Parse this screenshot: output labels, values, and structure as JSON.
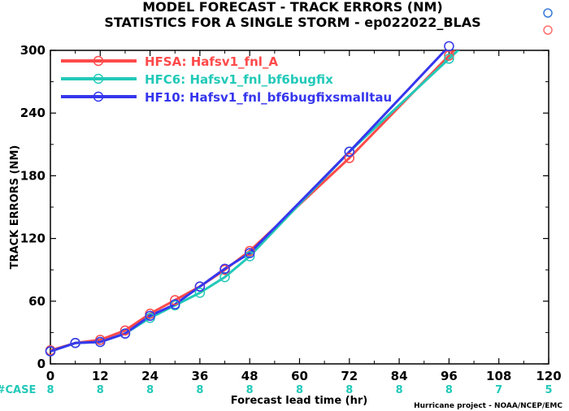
{
  "chart_data": {
    "type": "line",
    "title": "MODEL FORECAST - TRACK ERRORS (NM)",
    "subtitle": "STATISTICS FOR A SINGLE STORM - ep022022_BLAS",
    "xlabel": "Forecast lead time (hr)",
    "ylabel": "TRACK ERRORS (NM)",
    "xlim": [
      0,
      120
    ],
    "ylim": [
      0,
      300
    ],
    "x_ticks": [
      "0",
      "12",
      "24",
      "36",
      "48",
      "60",
      "72",
      "84",
      "96",
      "108",
      "120"
    ],
    "y_ticks": [
      "0",
      "60",
      "120",
      "180",
      "240",
      "300"
    ],
    "grid": false,
    "legend_position": "top-left",
    "series": [
      {
        "name": "HFSA: Hafsv1_fnl_A",
        "color": "#ff4a4a",
        "x": [
          0,
          6,
          12,
          18,
          24,
          30,
          36,
          42,
          48,
          72,
          96
        ],
        "y": [
          13,
          20,
          23,
          32,
          48,
          61,
          74,
          90,
          108,
          197,
          295
        ]
      },
      {
        "name": "HFC6: Hafsv1_fnl_bf6bugfix",
        "color": "#22c9b8",
        "x": [
          0,
          6,
          12,
          18,
          24,
          30,
          36,
          42,
          48,
          72,
          96
        ],
        "y": [
          12,
          20,
          21,
          29,
          44,
          56,
          68,
          83,
          103,
          203,
          292
        ]
      },
      {
        "name": "HF10: Hafsv1_fnl_bf6bugfixsmalltau",
        "color": "#3636ee",
        "x": [
          0,
          6,
          12,
          18,
          24,
          30,
          36,
          42,
          48,
          72,
          96
        ],
        "y": [
          12,
          20,
          21,
          29,
          46,
          57,
          74,
          91,
          106,
          203,
          304
        ]
      }
    ],
    "case_counts": {
      "label": "#CASE",
      "values": [
        "8",
        "8",
        "8",
        "8",
        "8",
        "8",
        "8",
        "8",
        "8",
        "7",
        "5"
      ]
    },
    "credit": "Hurricane project - NOAA/NCEP/EMC"
  }
}
